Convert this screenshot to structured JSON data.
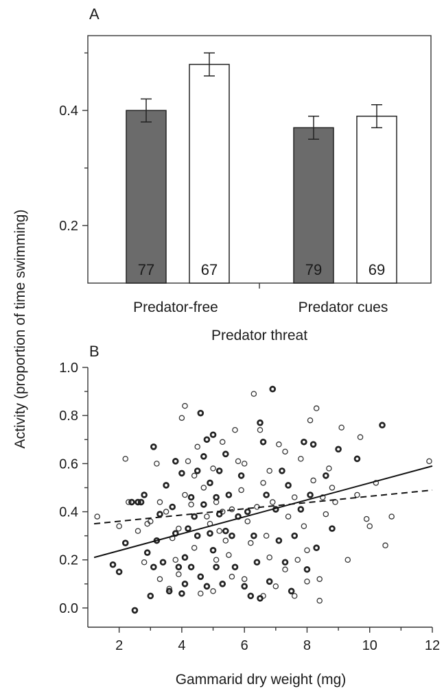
{
  "figure": {
    "y_axis_label": "Activity (proportion of time swimming)"
  },
  "chart_data": [
    {
      "type": "bar",
      "panel_label": "A",
      "xlabel": "Predator threat",
      "categories": [
        "Predator-free",
        "Predator cues"
      ],
      "series": [
        {
          "values": [
            0.4,
            0.37
          ],
          "errors": [
            0.02,
            0.02
          ],
          "n_labels": [
            "77",
            "79"
          ],
          "color": "#6b6b6b"
        },
        {
          "values": [
            0.48,
            0.39
          ],
          "errors": [
            0.02,
            0.02
          ],
          "n_labels": [
            "67",
            "69"
          ],
          "color": "#ffffff"
        }
      ],
      "yticks": [
        0.2,
        0.4
      ],
      "ytick_labels": [
        "0.2",
        "0.4"
      ],
      "ylim": [
        0.1,
        0.53
      ]
    },
    {
      "type": "scatter",
      "panel_label": "B",
      "xlabel": "Gammarid dry weight (mg)",
      "xticks": [
        2,
        4,
        6,
        8,
        10,
        12
      ],
      "xtick_labels": [
        "2",
        "4",
        "6",
        "8",
        "10",
        "12"
      ],
      "yticks": [
        0.0,
        0.2,
        0.4,
        0.6,
        0.8,
        1.0
      ],
      "ytick_labels": [
        "0.0",
        "0.2",
        "0.4",
        "0.6",
        "0.8",
        "1.0"
      ],
      "xlim": [
        1.0,
        12.0
      ],
      "ylim": [
        -0.08,
        1.0
      ],
      "series": [
        {
          "style": "open",
          "fit_line": {
            "style": "dashed",
            "x": [
              1.2,
              12.0
            ],
            "y": [
              0.35,
              0.49
            ]
          },
          "points": [
            [
              1.3,
              0.38
            ],
            [
              2.2,
              0.62
            ],
            [
              2.0,
              0.34
            ],
            [
              2.3,
              0.44
            ],
            [
              2.6,
              0.32
            ],
            [
              2.8,
              0.19
            ],
            [
              3.0,
              0.36
            ],
            [
              3.2,
              0.6
            ],
            [
              3.3,
              0.44
            ],
            [
              3.5,
              0.4
            ],
            [
              3.7,
              0.29
            ],
            [
              3.8,
              0.2
            ],
            [
              3.9,
              0.33
            ],
            [
              4.0,
              0.79
            ],
            [
              4.1,
              0.84
            ],
            [
              4.2,
              0.61
            ],
            [
              4.3,
              0.43
            ],
            [
              4.4,
              0.55
            ],
            [
              4.5,
              0.67
            ],
            [
              4.7,
              0.5
            ],
            [
              4.8,
              0.38
            ],
            [
              4.9,
              0.35
            ],
            [
              5.0,
              0.58
            ],
            [
              5.1,
              0.44
            ],
            [
              5.2,
              0.32
            ],
            [
              5.3,
              0.69
            ],
            [
              5.4,
              0.28
            ],
            [
              5.5,
              0.22
            ],
            [
              5.6,
              0.41
            ],
            [
              5.7,
              0.74
            ],
            [
              5.8,
              0.61
            ],
            [
              5.9,
              0.49
            ],
            [
              6.0,
              0.12
            ],
            [
              6.1,
              0.36
            ],
            [
              6.2,
              0.27
            ],
            [
              6.3,
              0.89
            ],
            [
              6.4,
              0.42
            ],
            [
              6.5,
              0.74
            ],
            [
              6.6,
              0.52
            ],
            [
              6.7,
              0.3
            ],
            [
              6.8,
              0.21
            ],
            [
              6.9,
              0.44
            ],
            [
              7.0,
              0.09
            ],
            [
              7.1,
              0.68
            ],
            [
              7.2,
              0.57
            ],
            [
              7.3,
              0.16
            ],
            [
              7.4,
              0.38
            ],
            [
              7.5,
              0.07
            ],
            [
              7.6,
              0.46
            ],
            [
              7.7,
              0.2
            ],
            [
              7.8,
              0.62
            ],
            [
              7.9,
              0.34
            ],
            [
              8.0,
              0.24
            ],
            [
              8.1,
              0.78
            ],
            [
              8.2,
              0.53
            ],
            [
              8.3,
              0.83
            ],
            [
              8.4,
              0.12
            ],
            [
              8.5,
              0.46
            ],
            [
              8.6,
              0.39
            ],
            [
              8.7,
              0.58
            ],
            [
              8.9,
              0.44
            ],
            [
              9.1,
              0.75
            ],
            [
              9.3,
              0.2
            ],
            [
              9.7,
              0.71
            ],
            [
              9.9,
              0.37
            ],
            [
              10.0,
              0.34
            ],
            [
              10.2,
              0.52
            ],
            [
              10.5,
              0.26
            ],
            [
              10.7,
              0.38
            ],
            [
              11.9,
              0.61
            ],
            [
              4.6,
              0.06
            ],
            [
              5.0,
              0.07
            ],
            [
              5.6,
              0.13
            ],
            [
              6.6,
              0.05
            ],
            [
              7.6,
              0.05
            ],
            [
              8.4,
              0.03
            ],
            [
              3.3,
              0.12
            ],
            [
              3.6,
              0.08
            ],
            [
              2.9,
              0.35
            ],
            [
              3.9,
              0.14
            ],
            [
              4.4,
              0.25
            ],
            [
              5.3,
              0.4
            ],
            [
              6.0,
              0.6
            ],
            [
              6.8,
              0.57
            ],
            [
              7.3,
              0.65
            ],
            [
              8.0,
              0.11
            ],
            [
              8.8,
              0.5
            ],
            [
              9.6,
              0.47
            ],
            [
              4.1,
              0.47
            ],
            [
              5.1,
              0.2
            ]
          ]
        },
        {
          "style": "bold",
          "fit_line": {
            "style": "solid",
            "x": [
              1.2,
              12.0
            ],
            "y": [
              0.21,
              0.59
            ]
          },
          "points": [
            [
              1.8,
              0.18
            ],
            [
              2.0,
              0.15
            ],
            [
              2.2,
              0.27
            ],
            [
              2.4,
              0.44
            ],
            [
              2.5,
              -0.01
            ],
            [
              2.6,
              0.44
            ],
            [
              2.7,
              0.44
            ],
            [
              2.8,
              0.47
            ],
            [
              2.9,
              0.23
            ],
            [
              3.0,
              0.05
            ],
            [
              3.1,
              0.17
            ],
            [
              3.1,
              0.67
            ],
            [
              3.2,
              0.28
            ],
            [
              3.3,
              0.39
            ],
            [
              3.4,
              0.19
            ],
            [
              3.5,
              0.51
            ],
            [
              3.6,
              0.07
            ],
            [
              3.7,
              0.42
            ],
            [
              3.8,
              0.31
            ],
            [
              3.8,
              0.61
            ],
            [
              3.9,
              0.17
            ],
            [
              4.0,
              0.56
            ],
            [
              4.0,
              0.06
            ],
            [
              4.1,
              0.21
            ],
            [
              4.1,
              0.1
            ],
            [
              4.2,
              0.33
            ],
            [
              4.3,
              0.46
            ],
            [
              4.3,
              0.17
            ],
            [
              4.4,
              0.38
            ],
            [
              4.5,
              0.57
            ],
            [
              4.5,
              0.3
            ],
            [
              4.6,
              0.81
            ],
            [
              4.6,
              0.13
            ],
            [
              4.7,
              0.63
            ],
            [
              4.7,
              0.43
            ],
            [
              4.8,
              0.09
            ],
            [
              4.8,
              0.7
            ],
            [
              4.9,
              0.31
            ],
            [
              4.9,
              0.52
            ],
            [
              5.0,
              0.24
            ],
            [
              5.0,
              0.72
            ],
            [
              5.1,
              0.46
            ],
            [
              5.1,
              0.17
            ],
            [
              5.2,
              0.57
            ],
            [
              5.2,
              0.39
            ],
            [
              5.3,
              0.1
            ],
            [
              5.4,
              0.64
            ],
            [
              5.4,
              0.32
            ],
            [
              5.5,
              0.47
            ],
            [
              5.6,
              0.3
            ],
            [
              5.7,
              0.17
            ],
            [
              5.8,
              0.38
            ],
            [
              5.9,
              0.55
            ],
            [
              6.0,
              0.09
            ],
            [
              6.1,
              0.4
            ],
            [
              6.2,
              0.05
            ],
            [
              6.3,
              0.3
            ],
            [
              6.4,
              0.19
            ],
            [
              6.5,
              0.77
            ],
            [
              6.5,
              0.04
            ],
            [
              6.6,
              0.69
            ],
            [
              6.7,
              0.47
            ],
            [
              6.8,
              0.11
            ],
            [
              6.9,
              0.91
            ],
            [
              7.0,
              0.41
            ],
            [
              7.1,
              0.28
            ],
            [
              7.2,
              0.57
            ],
            [
              7.3,
              0.19
            ],
            [
              7.4,
              0.51
            ],
            [
              7.5,
              0.07
            ],
            [
              7.6,
              0.3
            ],
            [
              7.8,
              0.41
            ],
            [
              7.9,
              0.69
            ],
            [
              8.0,
              0.16
            ],
            [
              8.1,
              0.47
            ],
            [
              8.2,
              0.68
            ],
            [
              8.3,
              0.25
            ],
            [
              8.6,
              0.55
            ],
            [
              8.8,
              0.33
            ],
            [
              9.0,
              0.66
            ],
            [
              9.6,
              0.62
            ],
            [
              10.4,
              0.76
            ]
          ]
        }
      ]
    }
  ]
}
